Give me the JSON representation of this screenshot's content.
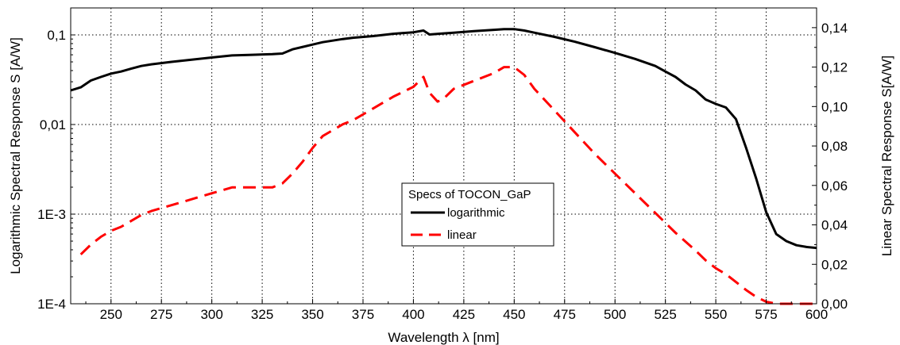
{
  "chart_data": {
    "type": "line",
    "xlabel": "Wavelength λ [nm]",
    "ylabel_left": "Logarithmic Spectral Response S [A/W]",
    "ylabel_right": "Linear Spectral Response S[A/W]",
    "xlim": [
      230,
      600
    ],
    "ylim_left": [
      0.0001,
      0.2
    ],
    "ylim_right": [
      0,
      0.15
    ],
    "x_ticks": [
      250,
      275,
      300,
      325,
      350,
      375,
      400,
      425,
      450,
      475,
      500,
      525,
      550,
      575,
      600
    ],
    "x_tick_labels": [
      "250",
      "275",
      "300",
      "325",
      "350",
      "375",
      "400",
      "425",
      "450",
      "475",
      "500",
      "525",
      "550",
      "575",
      "600"
    ],
    "y_left_ticks": [
      0.0001,
      0.001,
      0.01,
      0.1
    ],
    "y_left_tick_labels": [
      "1E-4",
      "1E-3",
      "0,01",
      "0,1"
    ],
    "y_right_ticks": [
      0,
      0.02,
      0.04,
      0.06,
      0.08,
      0.1,
      0.12,
      0.14
    ],
    "y_right_tick_labels": [
      "0,00",
      "0,02",
      "0,04",
      "0,06",
      "0,08",
      "0,10",
      "0,12",
      "0,14"
    ],
    "grid": true,
    "legend": {
      "title": "Specs of TOCON_GaP",
      "position": "center"
    },
    "series": [
      {
        "name": "logarithmic",
        "axis": "left",
        "color": "#000000",
        "style": "solid",
        "x": [
          230,
          235,
          240,
          245,
          250,
          255,
          260,
          265,
          270,
          280,
          290,
          300,
          310,
          320,
          330,
          335,
          340,
          350,
          355,
          365,
          370,
          380,
          390,
          400,
          405,
          408,
          415,
          420,
          430,
          440,
          445,
          450,
          455,
          460,
          470,
          480,
          490,
          500,
          510,
          520,
          525,
          530,
          535,
          540,
          545,
          550,
          555,
          560,
          565,
          570,
          575,
          580,
          585,
          590,
          595,
          600
        ],
        "y": [
          0.024,
          0.026,
          0.031,
          0.034,
          0.037,
          0.039,
          0.042,
          0.045,
          0.047,
          0.05,
          0.053,
          0.056,
          0.059,
          0.06,
          0.061,
          0.062,
          0.069,
          0.078,
          0.083,
          0.09,
          0.093,
          0.097,
          0.103,
          0.107,
          0.112,
          0.101,
          0.104,
          0.106,
          0.11,
          0.114,
          0.116,
          0.116,
          0.112,
          0.106,
          0.095,
          0.084,
          0.073,
          0.063,
          0.054,
          0.045,
          0.039,
          0.034,
          0.028,
          0.024,
          0.019,
          0.017,
          0.0155,
          0.0115,
          0.0055,
          0.0025,
          0.00105,
          0.0006,
          0.0005,
          0.00045,
          0.00043,
          0.00042
        ]
      },
      {
        "name": "linear",
        "axis": "right",
        "color": "#ff0000",
        "style": "dashed",
        "x": [
          235,
          240,
          245,
          250,
          255,
          260,
          265,
          270,
          280,
          290,
          300,
          310,
          320,
          330,
          335,
          340,
          345,
          350,
          355,
          365,
          370,
          380,
          390,
          400,
          405,
          408,
          412,
          415,
          420,
          430,
          440,
          445,
          450,
          455,
          460,
          470,
          480,
          490,
          500,
          510,
          520,
          525,
          530,
          540,
          545,
          550,
          555,
          560,
          565,
          570,
          575,
          580,
          585,
          590,
          595,
          600
        ],
        "y": [
          0.025,
          0.03,
          0.034,
          0.037,
          0.039,
          0.042,
          0.045,
          0.047,
          0.05,
          0.053,
          0.056,
          0.059,
          0.059,
          0.059,
          0.061,
          0.066,
          0.072,
          0.079,
          0.085,
          0.091,
          0.093,
          0.099,
          0.105,
          0.11,
          0.115,
          0.107,
          0.1025,
          0.104,
          0.109,
          0.113,
          0.117,
          0.12,
          0.12,
          0.116,
          0.109,
          0.098,
          0.087,
          0.076,
          0.066,
          0.056,
          0.046,
          0.041,
          0.036,
          0.027,
          0.022,
          0.018,
          0.015,
          0.011,
          0.007,
          0.0035,
          0.001,
          0.0,
          0.0,
          0.0,
          0.0,
          0.0
        ]
      }
    ]
  }
}
